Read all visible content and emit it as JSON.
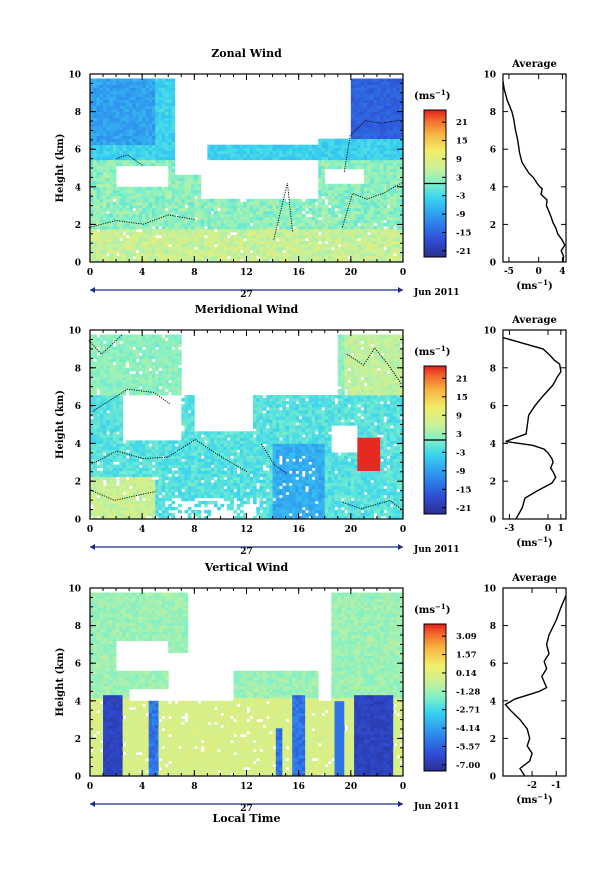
{
  "figure": {
    "date_label": "Jun 2011",
    "day_label": "27",
    "xlabel_bottom": "Local Time",
    "unit_label": "(ms",
    "unit_sup": "−1"
  },
  "chart_data": [
    {
      "type": "heatmap",
      "title": "Zonal Wind",
      "ylabel": "Height (km)",
      "xticks": [
        "0",
        "4",
        "8",
        "12",
        "16",
        "20",
        "0"
      ],
      "yticks": [
        "0",
        "2",
        "4",
        "6",
        "8",
        "10"
      ],
      "xlim": [
        0,
        24
      ],
      "ylim": [
        0,
        10
      ],
      "colorbar": {
        "ticks": [
          "21",
          "15",
          "9",
          "3",
          "-3",
          "-9",
          "-15",
          "-21"
        ],
        "range": [
          -24,
          24
        ]
      },
      "contour_level": 0,
      "profile": {
        "title": "Average",
        "xticks": [
          "-5",
          "0",
          "4"
        ],
        "xlim": [
          -6,
          4.6
        ],
        "ylim": [
          0,
          10
        ],
        "x": [
          -6,
          -5.8,
          -5.3,
          -4.5,
          -4.2,
          -3.9,
          -3.6,
          -3.4,
          -3.2,
          -2.8,
          -2.2,
          -1.6,
          -0.9,
          -0.3,
          0.2,
          0.6,
          0.4,
          1.4,
          1.3,
          1.7,
          2.1,
          2.4,
          2.9,
          3.2,
          3.9,
          4.4,
          3.8,
          4.2,
          4.1
        ],
        "y": [
          9.6,
          9.2,
          8.6,
          8.0,
          7.6,
          7.0,
          6.6,
          6.2,
          5.8,
          5.3,
          5.0,
          4.7,
          4.5,
          4.2,
          4.0,
          3.9,
          3.6,
          3.3,
          3.0,
          2.7,
          2.4,
          2.1,
          1.8,
          1.5,
          1.2,
          0.9,
          0.6,
          0.3,
          0.0
        ]
      }
    },
    {
      "type": "heatmap",
      "title": "Meridional Wind",
      "ylabel": "Height (km)",
      "xticks": [
        "0",
        "4",
        "8",
        "12",
        "16",
        "20",
        "0"
      ],
      "yticks": [
        "0",
        "2",
        "4",
        "6",
        "8",
        "10"
      ],
      "xlim": [
        0,
        24
      ],
      "ylim": [
        0,
        10
      ],
      "colorbar": {
        "ticks": [
          "21",
          "15",
          "9",
          "3",
          "-3",
          "-9",
          "-15",
          "-21"
        ],
        "range": [
          -24,
          24
        ]
      },
      "contour_level": 0,
      "profile": {
        "title": "Average",
        "xticks": [
          "-3",
          "0",
          "1"
        ],
        "xlim": [
          -3.5,
          1.4
        ],
        "ylim": [
          0,
          10
        ],
        "x": [
          -3.5,
          -0.4,
          0.1,
          0.5,
          0.9,
          1.0,
          0.7,
          0.4,
          0.0,
          -0.4,
          -1.0,
          -1.5,
          -1.6,
          -1.7,
          -3.3,
          -1.2,
          -0.3,
          0.0,
          0.3,
          0.4,
          0.2,
          0.4,
          0.6,
          0.3,
          -0.8,
          -1.8,
          -2.0,
          -2.5
        ],
        "y": [
          9.6,
          9.0,
          8.7,
          8.4,
          8.2,
          7.8,
          7.5,
          7.1,
          6.8,
          6.5,
          6.0,
          5.5,
          5.0,
          4.5,
          4.1,
          3.9,
          3.7,
          3.5,
          3.2,
          3.0,
          2.7,
          2.5,
          2.2,
          1.9,
          1.5,
          1.1,
          0.6,
          0.0
        ]
      }
    },
    {
      "type": "heatmap",
      "title": "Vertical Wind",
      "ylabel": "Height (km)",
      "xticks": [
        "0",
        "4",
        "8",
        "12",
        "16",
        "20",
        "0"
      ],
      "yticks": [
        "0",
        "2",
        "4",
        "6",
        "8",
        "10"
      ],
      "xlim": [
        0,
        24
      ],
      "ylim": [
        0,
        10
      ],
      "colorbar": {
        "ticks": [
          "3.09",
          "1.57",
          "0.14",
          "-1.28",
          "-2.71",
          "-4.14",
          "-5.57",
          "-7.00"
        ],
        "range": [
          -7.8,
          3.8
        ]
      },
      "profile": {
        "title": "Average",
        "xticks": [
          "-2",
          "-1"
        ],
        "xlim": [
          -3.2,
          -0.6
        ],
        "ylim": [
          0,
          10
        ],
        "x": [
          -0.6,
          -0.8,
          -1.0,
          -1.3,
          -1.4,
          -1.3,
          -1.5,
          -1.4,
          -1.6,
          -1.5,
          -1.4,
          -1.7,
          -2.2,
          -2.7,
          -3.1,
          -2.9,
          -2.5,
          -2.2,
          -2.1,
          -2.2,
          -2.0,
          -2.1,
          -2.5,
          -2.3
        ],
        "y": [
          9.6,
          9.0,
          8.3,
          7.5,
          7.0,
          6.5,
          6.1,
          5.7,
          5.3,
          5.0,
          4.7,
          4.5,
          4.3,
          4.1,
          3.8,
          3.5,
          3.0,
          2.5,
          2.0,
          1.6,
          1.2,
          0.8,
          0.4,
          0.0
        ]
      }
    }
  ]
}
